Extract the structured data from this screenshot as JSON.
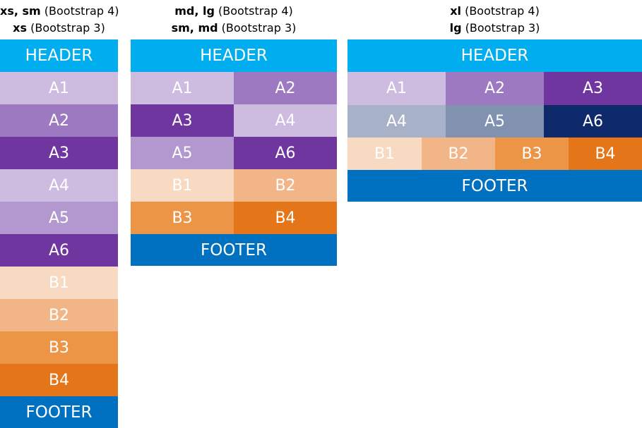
{
  "columns": [
    {
      "caption": {
        "line1_bold": "xs, sm",
        "line1_rest": " (Bootstrap 4)",
        "line2_bold": "xs",
        "line2_rest": " (Bootstrap 3)"
      },
      "header": "HEADER",
      "cells": [
        "A1",
        "A2",
        "A3",
        "A4",
        "A5",
        "A6",
        "B1",
        "B2",
        "B3",
        "B4"
      ],
      "footer": "FOOTER"
    },
    {
      "caption": {
        "line1_bold": "md, lg",
        "line1_rest": " (Bootstrap 4)",
        "line2_bold": "sm, md",
        "line2_rest": " (Bootstrap 3)"
      },
      "header": "HEADER",
      "cells": [
        "A1",
        "A2",
        "A3",
        "A4",
        "A5",
        "A6",
        "B1",
        "B2",
        "B3",
        "B4"
      ],
      "footer": "FOOTER"
    },
    {
      "caption": {
        "line1_bold": "xl",
        "line1_rest": " (Bootstrap 4)",
        "line2_bold": "lg",
        "line2_rest": " (Bootstrap 3)"
      },
      "header": "HEADER",
      "cells": [
        "A1",
        "A2",
        "A3",
        "A4",
        "A5",
        "A6",
        "B1",
        "B2",
        "B3",
        "B4"
      ],
      "footer": "FOOTER"
    }
  ],
  "colors": {
    "header": "#00adef",
    "footer": "#0070c0",
    "text": "#ffffff"
  }
}
